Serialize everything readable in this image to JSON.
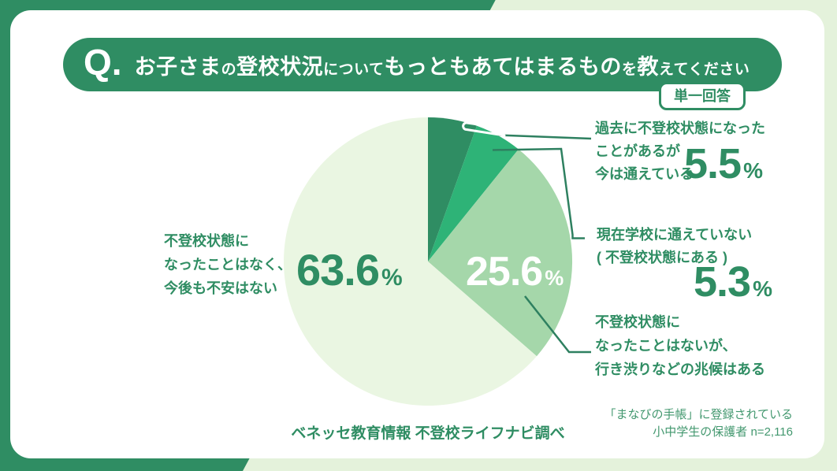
{
  "question": {
    "q_prefix": "Q.",
    "title_segments": [
      {
        "text": "お子さま",
        "em": true
      },
      {
        "text": "の",
        "em": false
      },
      {
        "text": "登校状況",
        "em": true
      },
      {
        "text": "について",
        "em": false
      },
      {
        "text": "もっともあてはまるもの",
        "em": true
      },
      {
        "text": "を",
        "em": false
      },
      {
        "text": "教",
        "em": true
      },
      {
        "text": "えてください",
        "em": false
      }
    ],
    "badge": "単一回答"
  },
  "chart_data": {
    "type": "pie",
    "title": "お子さまの登校状況についてもっともあてはまるものを教えてください",
    "unit": "%",
    "start_angle_deg": 0,
    "direction": "clockwise",
    "legend": false,
    "slices": [
      {
        "label": "過去に不登校状態になったことがあるが今は通えている",
        "value": 5.5,
        "color": "#2f8d63"
      },
      {
        "label": "現在学校に通えていない（不登校状態にある）",
        "value": 5.3,
        "color": "#2eb377"
      },
      {
        "label": "不登校状態になったことはないが、行き渋りなどの兆候はある",
        "value": 25.6,
        "color": "#a5d7aa"
      },
      {
        "label": "不登校状態になったことはなく、今後も不安はない",
        "value": 63.6,
        "color": "#eaf6e2"
      }
    ]
  },
  "callouts": {
    "past_recovered": {
      "lines": [
        "過去に不登校状態になった",
        "ことがあるが",
        "今は通えている"
      ],
      "value": "5.5",
      "unit": "%"
    },
    "currently_absent": {
      "lines": [
        "現在学校に通えていない",
        "( 不登校状態にある )"
      ],
      "value": "5.3",
      "unit": "%"
    },
    "warning_signs": {
      "lines": [
        "不登校状態に",
        "なったことはないが、",
        "行き渋りなどの兆候はある"
      ]
    },
    "never_no_worry": {
      "lines": [
        "不登校状態に",
        "なったことはなく、",
        "今後も不安はない"
      ],
      "value": "63.6",
      "unit": "%"
    },
    "inner": {
      "value": "25.6",
      "unit": "%"
    }
  },
  "footer": {
    "source": "ベネッセ教育情報 不登校ライフナビ調べ",
    "note_lines": [
      "「まなびの手帳」に登録されている",
      "小中学生の保護者 n=2,116"
    ]
  },
  "colors": {
    "brand_green": "#2f8d63",
    "emerald": "#2eb377",
    "light_green": "#a5d7aa",
    "pale_green": "#eaf6e2",
    "frame_background": "#e4f2db",
    "leader_line": "#2e8060",
    "white": "#ffffff"
  }
}
